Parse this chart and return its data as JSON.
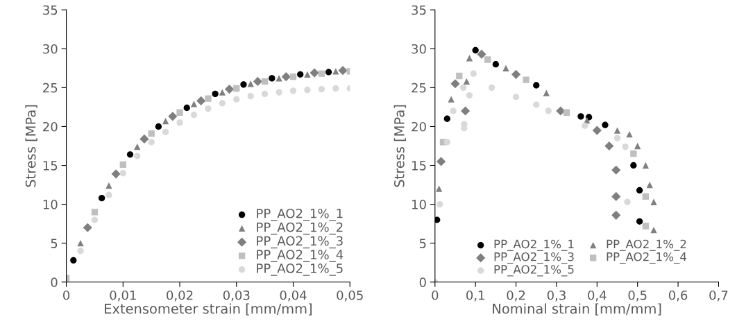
{
  "chart_data": [
    {
      "type": "scatter",
      "xlabel": "Extensometer strain [mm/mm]",
      "ylabel": "Stress [MPa]",
      "xlim": [
        0,
        0.05
      ],
      "ylim": [
        0,
        35
      ],
      "xticks": [
        {
          "value": 0,
          "label": "0"
        },
        {
          "value": 0.01,
          "label": "0,01"
        },
        {
          "value": 0.02,
          "label": "0,02"
        },
        {
          "value": 0.03,
          "label": "0,03"
        },
        {
          "value": 0.04,
          "label": "0,04"
        },
        {
          "value": 0.05,
          "label": "0,05"
        }
      ],
      "yticks": [
        0,
        5,
        10,
        15,
        20,
        25,
        30,
        35
      ],
      "legend": "lower right",
      "series": [
        {
          "name": "PP_AO2_1%_1",
          "color": "#000000",
          "marker": "circle",
          "x": [
            0.00125,
            0.00625,
            0.01125,
            0.01625,
            0.02125,
            0.02625,
            0.03125,
            0.03625,
            0.04125,
            0.04625
          ],
          "values": [
            2.8,
            10.8,
            16.4,
            20,
            22.4,
            24.2,
            25.4,
            26.2,
            26.7,
            27
          ]
        },
        {
          "name": "PP_AO2_1%_2",
          "color": "#808080",
          "marker": "triangle",
          "x": [
            0.0025,
            0.0075,
            0.0125,
            0.0175,
            0.0225,
            0.0275,
            0.0325,
            0.0375,
            0.0425,
            0.0475
          ],
          "values": [
            5,
            12.4,
            17.4,
            20.7,
            22.9,
            24.4,
            25.5,
            26.2,
            26.7,
            27.1
          ]
        },
        {
          "name": "PP_AO2_1%_3",
          "color": "#7f7f7f",
          "marker": "diamond",
          "x": [
            0.00375,
            0.00875,
            0.01375,
            0.01875,
            0.02375,
            0.02875,
            0.03375,
            0.03875,
            0.04375,
            0.04875
          ],
          "values": [
            7,
            13.9,
            18.4,
            21.3,
            23.3,
            24.8,
            25.8,
            26.4,
            26.9,
            27.2
          ]
        },
        {
          "name": "PP_AO2_1%_4",
          "color": "#bfbfbf",
          "marker": "square",
          "x": [
            0,
            0.005,
            0.01,
            0.015,
            0.02,
            0.025,
            0.03,
            0.035,
            0.04,
            0.045,
            0.05
          ],
          "values": [
            0.5,
            9,
            15.1,
            19.1,
            21.8,
            23.6,
            24.9,
            25.8,
            26.4,
            26.8,
            27.1
          ]
        },
        {
          "name": "PP_AO2_1%_5",
          "color": "#d9d9d9",
          "marker": "circle",
          "x": [
            0.0025,
            0.005,
            0.0075,
            0.01,
            0.0125,
            0.015,
            0.0175,
            0.02,
            0.0225,
            0.025,
            0.0275,
            0.03,
            0.0325,
            0.035,
            0.0375,
            0.04,
            0.0425,
            0.045,
            0.0475,
            0.05
          ],
          "values": [
            4,
            8,
            11.2,
            14,
            16.2,
            18,
            19.3,
            20.5,
            21.5,
            22.3,
            23,
            23.5,
            23.9,
            24.2,
            24.4,
            24.6,
            24.7,
            24.8,
            24.9,
            24.9
          ]
        }
      ]
    },
    {
      "type": "scatter",
      "xlabel": "Nominal strain [mm/mm]",
      "ylabel": "Stress [MPa]",
      "xlim": [
        0,
        0.7
      ],
      "ylim": [
        0,
        35
      ],
      "xticks": [
        {
          "value": 0,
          "label": "0"
        },
        {
          "value": 0.1,
          "label": "0,1"
        },
        {
          "value": 0.2,
          "label": "0,2"
        },
        {
          "value": 0.3,
          "label": "0,3"
        },
        {
          "value": 0.4,
          "label": "0,4"
        },
        {
          "value": 0.5,
          "label": "0,5"
        },
        {
          "value": 0.6,
          "label": "0,6"
        },
        {
          "value": 0.7,
          "label": "0,7"
        }
      ],
      "yticks": [
        0,
        5,
        10,
        15,
        20,
        25,
        30,
        35
      ],
      "legend": "lower left",
      "series": [
        {
          "name": "PP_AO2_1%_1",
          "color": "#000000",
          "marker": "circle",
          "x": [
            0.005,
            0.03,
            0.1,
            0.15,
            0.25,
            0.36,
            0.38,
            0.42,
            0.49,
            0.505,
            0.505
          ],
          "values": [
            8,
            21,
            29.8,
            28,
            25.3,
            21.3,
            21.2,
            20.2,
            15,
            11.8,
            7.8
          ]
        },
        {
          "name": "PP_AO2_1%_2",
          "color": "#808080",
          "marker": "triangle",
          "x": [
            0.01,
            0.04,
            0.078,
            0.085,
            0.175,
            0.275,
            0.375,
            0.45,
            0.48,
            0.5,
            0.52,
            0.53,
            0.54,
            0.54
          ],
          "values": [
            12,
            23.5,
            25.8,
            28.8,
            27.5,
            24.3,
            20.8,
            19.5,
            19,
            17.5,
            15,
            12.5,
            10.3,
            6.7
          ]
        },
        {
          "name": "PP_AO2_1%_3",
          "color": "#7f7f7f",
          "marker": "diamond",
          "x": [
            0.015,
            0.05,
            0.075,
            0.115,
            0.2,
            0.31,
            0.4,
            0.43,
            0.447,
            0.447,
            0.447
          ],
          "values": [
            15.5,
            25.5,
            22,
            29.3,
            26.7,
            22,
            19.5,
            17.5,
            14.4,
            11,
            8.6
          ]
        },
        {
          "name": "PP_AO2_1%_4",
          "color": "#bfbfbf",
          "marker": "square",
          "x": [
            0.02,
            0.06,
            0.13,
            0.225,
            0.325,
            0.49,
            0.52,
            0.52
          ],
          "values": [
            18,
            26.5,
            28.6,
            26,
            21.8,
            16.5,
            11,
            7.2
          ]
        },
        {
          "name": "PP_AO2_1%_5",
          "color": "#d9d9d9",
          "marker": "circle",
          "x": [
            0,
            0.012,
            0.03,
            0.045,
            0.07,
            0.072,
            0.072,
            0.085,
            0.095,
            0.14,
            0.2,
            0.25,
            0.28,
            0.37,
            0.45,
            0.47,
            0.475
          ],
          "values": [
            0,
            10,
            18,
            22,
            25,
            20.3,
            19.8,
            24,
            26.8,
            25,
            23.8,
            22.8,
            22,
            20.1,
            18.5,
            17.4,
            10.3
          ]
        }
      ]
    }
  ]
}
